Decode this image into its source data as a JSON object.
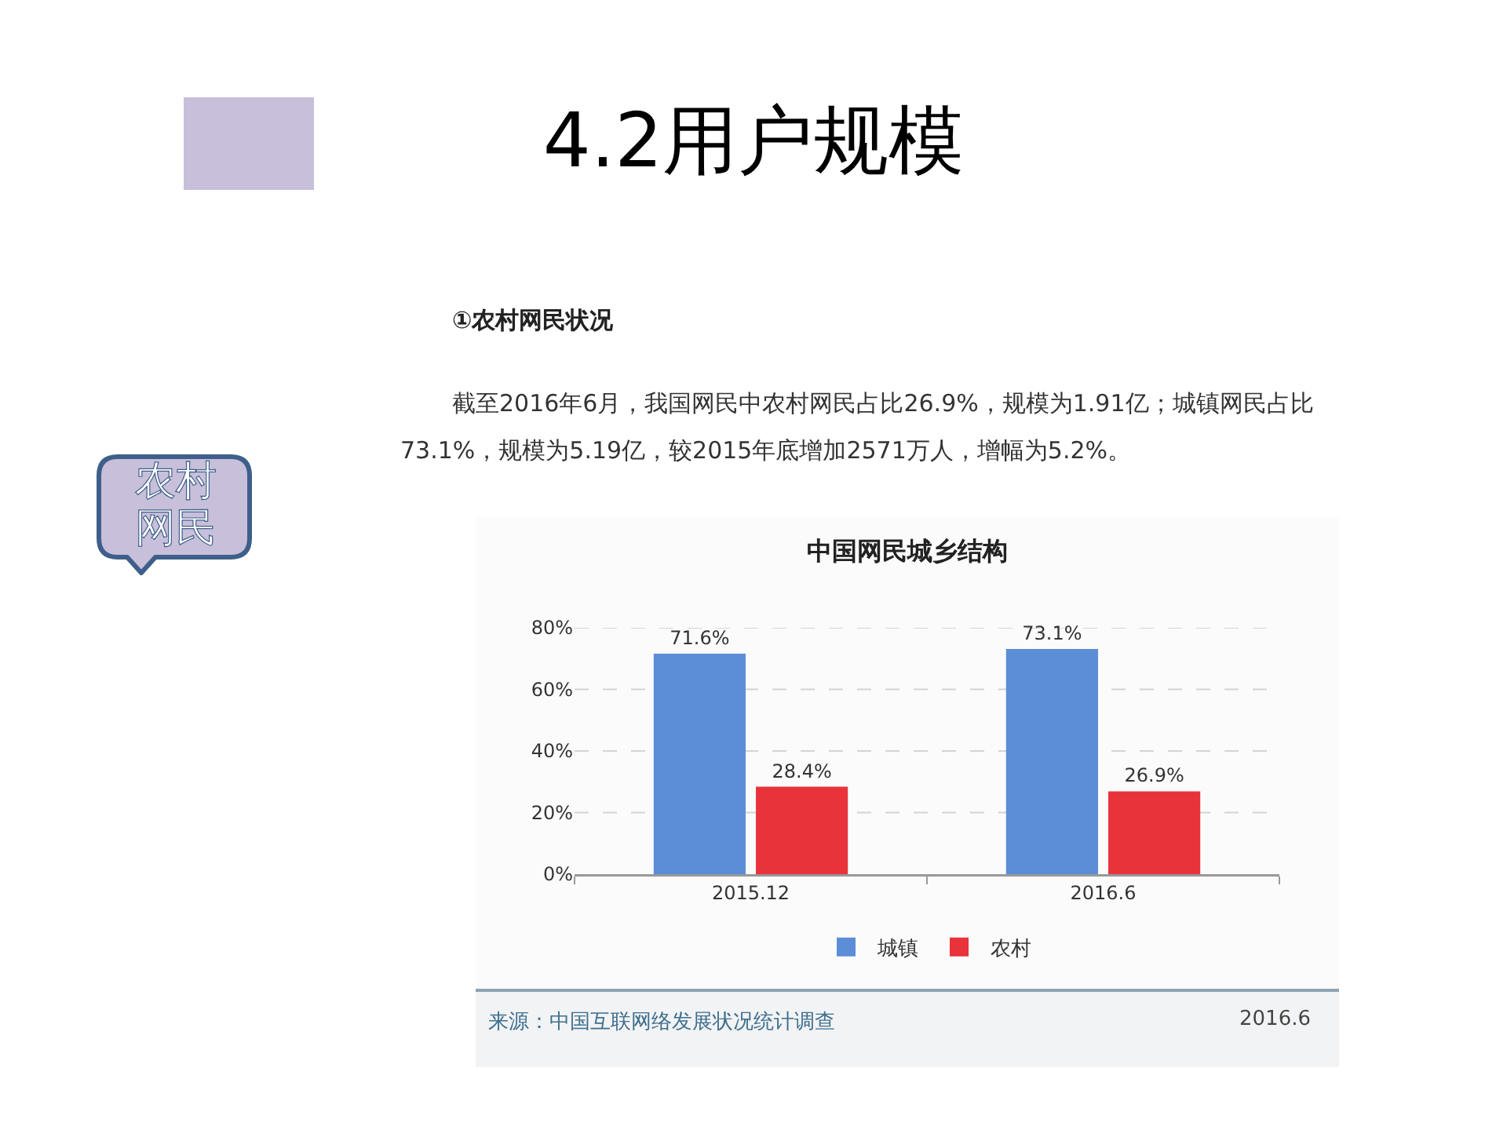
{
  "chart_data": {
    "type": "bar",
    "title": "中国网民城乡结构",
    "categories": [
      "2015.12",
      "2016.6"
    ],
    "series": [
      {
        "name": "城镇",
        "color": "#5b8ed6",
        "values": [
          71.6,
          73.1
        ],
        "value_labels": [
          "71.6%",
          "73.1%"
        ]
      },
      {
        "name": "农村",
        "color": "#e8333b",
        "values": [
          28.4,
          26.9
        ],
        "value_labels": [
          "28.4%",
          "26.9%"
        ]
      }
    ],
    "ylim": [
      0,
      80
    ],
    "yticks": [
      {
        "value": 0,
        "label": "0%"
      },
      {
        "value": 20,
        "label": "20%"
      },
      {
        "value": 40,
        "label": "40%"
      },
      {
        "value": 60,
        "label": "60%"
      },
      {
        "value": 80,
        "label": "80%"
      }
    ],
    "grid": "y",
    "legend": "bottom",
    "annotations": [
      "4.2用户规模",
      "①农村网民状况",
      "截至2016年6月，我国网民中农村网民占比26.9%，规模为1.91亿；城镇网民占比73.1%，规模为5.19亿，较2015年底增加2571万人，增幅为5.2%。",
      "农村网民",
      "来源：中国互联网络发展状况统计调查",
      "2016.6"
    ]
  }
}
